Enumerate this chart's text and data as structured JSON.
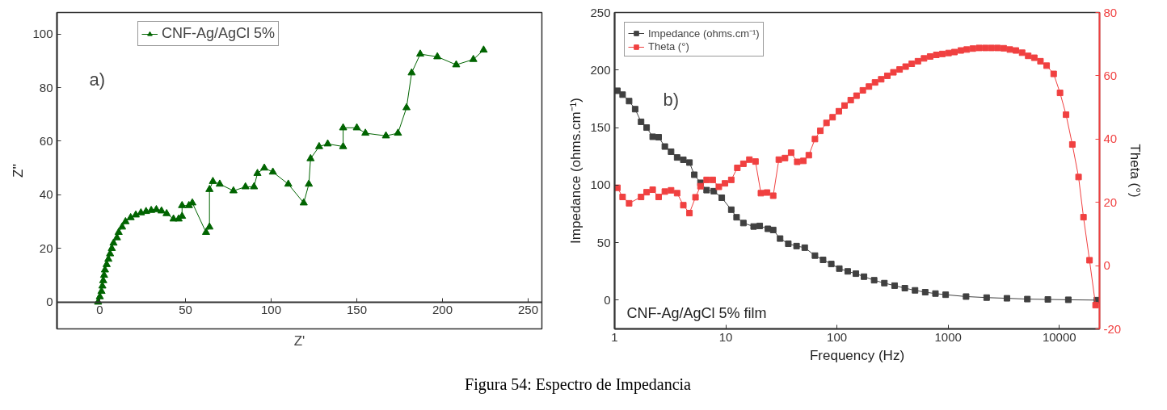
{
  "chart_data": [
    {
      "type": "line",
      "marker": "triangle",
      "line_style": "solid",
      "grid": false,
      "legend": "top left",
      "xlabel": "Z'",
      "ylabel": "Z''",
      "xlim": [
        -25,
        258
      ],
      "ylim": [
        -10,
        108
      ],
      "xticks": [
        0,
        50,
        100,
        150,
        200,
        250
      ],
      "yticks": [
        0,
        20,
        40,
        60,
        80,
        100
      ],
      "annotations": [
        "a)",
        "Figura 54: Espectro de Impedancia"
      ],
      "series": [
        {
          "name": "CNF-Ag/AgCl 5%",
          "color": "#006400",
          "x": [
            -1,
            0,
            1,
            1.5,
            2,
            2.5,
            3,
            4,
            5,
            6,
            7,
            8,
            10,
            11,
            13,
            15,
            18,
            21,
            24,
            27,
            30,
            33,
            36,
            39,
            43,
            46,
            48,
            48,
            52,
            54,
            62,
            64,
            64,
            66,
            70,
            78,
            85,
            90,
            92,
            96,
            101,
            110,
            119,
            122,
            123,
            128,
            133,
            142,
            142,
            150,
            155,
            167,
            174,
            179,
            182,
            187,
            197,
            208,
            218,
            224
          ],
          "values": [
            0,
            2,
            4,
            6,
            8,
            10,
            12,
            14,
            16,
            18,
            20,
            22,
            24,
            26,
            28,
            30,
            31.5,
            32.5,
            33.3,
            33.8,
            34.2,
            34.5,
            34,
            33,
            31,
            31,
            32,
            36,
            36,
            37,
            26,
            28,
            42,
            45,
            44,
            41.5,
            43,
            43,
            48,
            50,
            48.5,
            44,
            37,
            44,
            53.5,
            58,
            59,
            58,
            65,
            65,
            63,
            62,
            63,
            72.5,
            85.5,
            92.5,
            91.5,
            88.5,
            90.5,
            94
          ]
        }
      ]
    },
    {
      "type": "line",
      "marker": "square",
      "line_style": "solid",
      "grid": false,
      "legend": "top left",
      "log": "x",
      "xlabel": "Frequency (Hz)",
      "ylabel": "Impedance (ohms.cm⁻¹)",
      "y2label": "Theta (°)",
      "xlim": [
        1,
        23000
      ],
      "ylim": [
        -25,
        250
      ],
      "y2lim": [
        -20,
        80
      ],
      "xticks": [
        1,
        10,
        100,
        1000,
        10000
      ],
      "yticks": [
        0,
        50,
        100,
        150,
        200,
        250
      ],
      "y2ticks": [
        -20,
        0,
        20,
        40,
        60,
        80
      ],
      "annotations": [
        "b)",
        "CNF-Ag/AgCl 5% film"
      ],
      "series": [
        {
          "name": "Impedance (ohms.cm⁻¹)",
          "color": "#404040",
          "x": [
            1.06,
            1.18,
            1.35,
            1.53,
            1.73,
            1.94,
            2.2,
            2.49,
            2.83,
            3.22,
            3.65,
            4.15,
            4.71,
            5.21,
            5.92,
            6.72,
            7.8,
            9.2,
            11.2,
            12.5,
            14.4,
            17.8,
            20.2,
            23.9,
            26.7,
            30.8,
            36.5,
            43.3,
            51.3,
            63.4,
            75,
            88.9,
            105,
            125,
            148,
            175,
            216,
            267,
            330,
            408,
            504,
            622,
            769,
            950,
            1450,
            2220,
            3380,
            5160,
            7890,
            12050,
            21800
          ],
          "values": [
            182,
            178.6,
            173,
            166,
            155,
            150,
            142,
            141.6,
            133.5,
            129,
            124,
            122,
            119.6,
            109,
            102,
            95.6,
            94.7,
            89,
            78.6,
            72,
            67,
            64,
            64.5,
            62,
            61,
            53.5,
            49,
            47,
            45.6,
            38.7,
            35,
            31.4,
            27.4,
            25,
            23,
            20.4,
            17.3,
            14.8,
            12.6,
            10.4,
            8.5,
            6.9,
            5.7,
            4.7,
            3.1,
            2.2,
            1.6,
            0.9,
            0.6,
            0.3,
            0
          ]
        },
        {
          "name": "Theta (°)",
          "color": "#f04040",
          "axis": "y2",
          "x": [
            1.06,
            1.18,
            1.35,
            1.73,
            1.94,
            2.2,
            2.49,
            2.83,
            3.22,
            3.65,
            4.15,
            4.71,
            5.34,
            5.92,
            6.72,
            7.63,
            8.66,
            9.83,
            11.2,
            12.7,
            14.4,
            16.3,
            18.5,
            20.7,
            23.5,
            26.7,
            30.0,
            34.1,
            38.7,
            43.9,
            49.9,
            55.8,
            63.4,
            70.9,
            80.5,
            91.4,
            104,
            117,
            133,
            150,
            171,
            194,
            220,
            250,
            284,
            322,
            366,
            415,
            471,
            535,
            607,
            689,
            783,
            888,
            1010,
            1140,
            1300,
            1470,
            1670,
            1900,
            2160,
            2450,
            2780,
            3160,
            3590,
            4070,
            4630,
            5250,
            5960,
            6770,
            7690,
            8900,
            10150,
            11500,
            13100,
            14900,
            16500,
            18700,
            21200
          ],
          "values": [
            24.6,
            21.7,
            19.7,
            21.7,
            23.2,
            24,
            21.7,
            23.4,
            23.8,
            22.9,
            19.1,
            16.6,
            21.6,
            25.1,
            27.1,
            27.1,
            24.9,
            26,
            27.1,
            30.9,
            32.2,
            33.5,
            32.9,
            22.9,
            23.1,
            22.1,
            33.5,
            34,
            35.7,
            32.8,
            33.1,
            34.9,
            40,
            42.6,
            45.1,
            46.9,
            48.8,
            50.6,
            52.3,
            53.7,
            55.4,
            56.6,
            57.9,
            58.9,
            60,
            61.1,
            62,
            62.9,
            63.8,
            64.6,
            65.5,
            66.1,
            66.6,
            66.9,
            67.2,
            67.5,
            68,
            68.3,
            68.6,
            68.8,
            68.8,
            68.8,
            68.8,
            68.7,
            68.3,
            68,
            67.3,
            66.3,
            65.7,
            64.6,
            63.2,
            60.6,
            54.6,
            47.7,
            38.3,
            28,
            15.3,
            1.7,
            -12.5
          ]
        }
      ]
    }
  ]
}
